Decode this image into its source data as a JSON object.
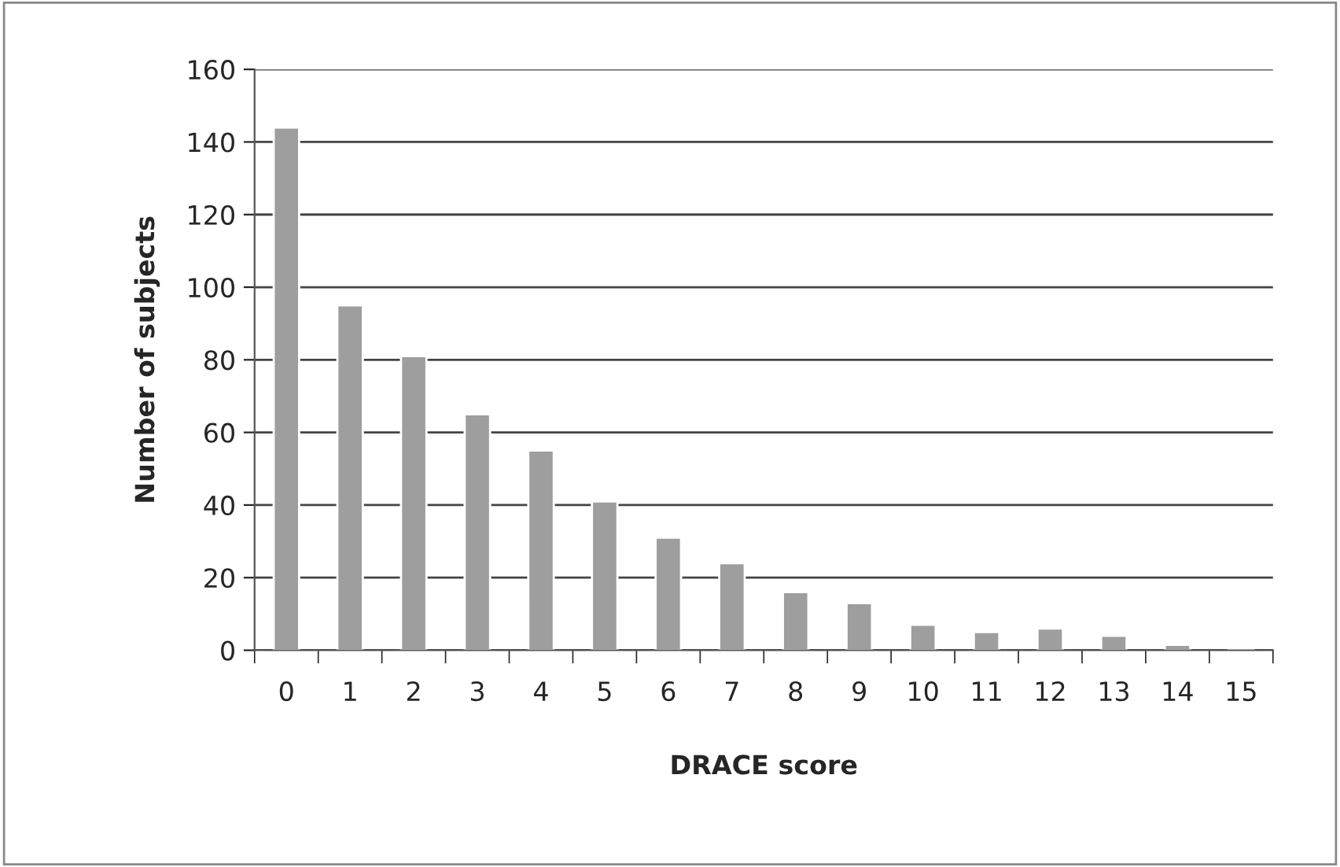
{
  "chart_data": {
    "type": "bar",
    "xlabel": "DRACE score",
    "ylabel": "Number of subjects",
    "categories": [
      "0",
      "1",
      "2",
      "3",
      "4",
      "5",
      "6",
      "7",
      "8",
      "9",
      "10",
      "11",
      "12",
      "13",
      "14",
      "15"
    ],
    "values": [
      144,
      95,
      81,
      65,
      55,
      41,
      31,
      24,
      16,
      13,
      7,
      5,
      6,
      4,
      1.5,
      0.5
    ],
    "color": "#9e9e9e",
    "ylim": [
      0,
      160
    ],
    "yticks": [
      0,
      20,
      40,
      60,
      80,
      100,
      120,
      140,
      160
    ],
    "grid": "y",
    "legend": false
  }
}
